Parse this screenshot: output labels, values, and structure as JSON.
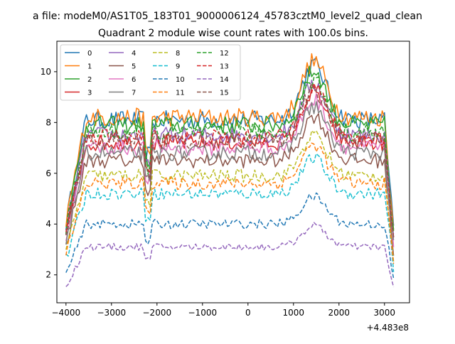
{
  "figure": {
    "suptitle": "a file: modeM0/AS1T05_183T01_9000006124_45783cztM0_level2_quad_clean",
    "title": "Quadrant 2 module wise count rates with 100.0s bins.",
    "offset_text": "+4.483e8"
  },
  "chart_data": {
    "type": "line",
    "title": "Quadrant 2 module wise count rates with 100.0s bins.",
    "xlabel": "",
    "ylabel": "",
    "x_offset": "+4.483e8",
    "xlim": [
      -4200,
      3550
    ],
    "ylim": [
      0.9,
      11.2
    ],
    "xticks": [
      -4000,
      -3000,
      -2000,
      -1000,
      0,
      1000,
      2000,
      3000
    ],
    "yticks": [
      2,
      4,
      6,
      8,
      10
    ],
    "grid": false,
    "legend_position": "top-left",
    "x_range": [
      -4000,
      3200
    ],
    "bin_width": 100,
    "series": [
      {
        "name": "0",
        "color": "#1f77b4",
        "style": "solid",
        "level": 8.1
      },
      {
        "name": "1",
        "color": "#ff7f0e",
        "style": "solid",
        "level": 8.2
      },
      {
        "name": "2",
        "color": "#2ca02c",
        "style": "solid",
        "level": 7.9
      },
      {
        "name": "3",
        "color": "#d62728",
        "style": "solid",
        "level": 7.2
      },
      {
        "name": "4",
        "color": "#9467bd",
        "style": "solid",
        "level": 7.5
      },
      {
        "name": "5",
        "color": "#8c564b",
        "style": "solid",
        "level": 6.5
      },
      {
        "name": "6",
        "color": "#e377c2",
        "style": "solid",
        "level": 7.0
      },
      {
        "name": "7",
        "color": "#7f7f7f",
        "style": "solid",
        "level": 6.8
      },
      {
        "name": "8",
        "color": "#bcbd22",
        "style": "dashed",
        "level": 5.9
      },
      {
        "name": "9",
        "color": "#17becf",
        "style": "dashed",
        "level": 5.2
      },
      {
        "name": "10",
        "color": "#1f77b4",
        "style": "dashed",
        "level": 4.0
      },
      {
        "name": "11",
        "color": "#ff7f0e",
        "style": "dashed",
        "level": 5.6
      },
      {
        "name": "12",
        "color": "#2ca02c",
        "style": "dashed",
        "level": 7.6
      },
      {
        "name": "13",
        "color": "#d62728",
        "style": "dashed",
        "level": 7.4
      },
      {
        "name": "14",
        "color": "#9467bd",
        "style": "dashed",
        "level": 3.1
      },
      {
        "name": "15",
        "color": "#8c564b",
        "style": "dashed",
        "level": 7.3
      }
    ]
  }
}
